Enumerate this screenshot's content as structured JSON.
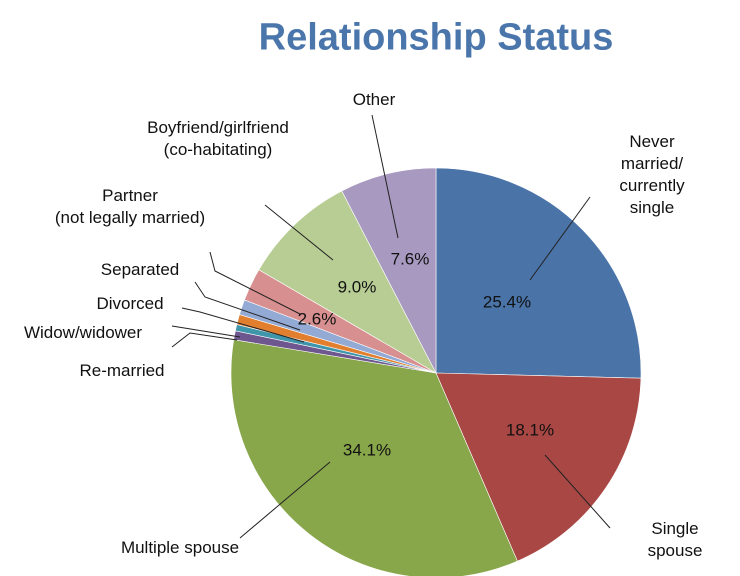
{
  "chart_data": {
    "type": "pie",
    "title": "Relationship Status",
    "categories": [
      "Never  married/\ncurrently single",
      "Single spouse",
      "Multiple spouse",
      "Re-married",
      "Widow/widower",
      "Divorced",
      "Separated",
      "Partner\n(not legally married)",
      "Boyfriend/girlfriend\n(co-habitating)",
      "Other"
    ],
    "values": [
      25.4,
      18.1,
      34.1,
      0.7,
      0.5,
      0.8,
      1.2,
      2.6,
      9.0,
      7.6
    ],
    "value_labels": [
      "25.4%",
      "18.1%",
      "34.1%",
      null,
      null,
      null,
      null,
      "2.6%",
      "9.0%",
      "7.6%"
    ],
    "colors": [
      "#4a73a8",
      "#a84743",
      "#88a64a",
      "#6e568f",
      "#3f95aa",
      "#e27f2e",
      "#92aad4",
      "#d78f8f",
      "#b8cd93",
      "#a799bf"
    ]
  }
}
